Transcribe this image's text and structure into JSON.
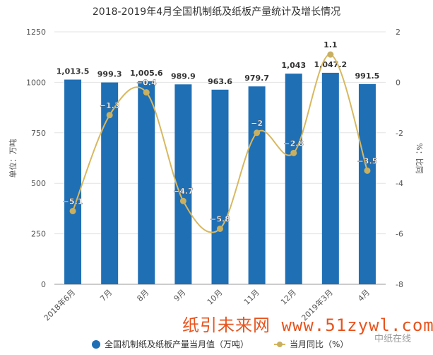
{
  "chart_data": {
    "type": "bar+line",
    "title": "2018-2019年4月全国机制纸及纸板产量统计及增长情况",
    "categories": [
      "2018年6月",
      "7月",
      "8月",
      "9月",
      "10月",
      "11月",
      "12月",
      "2019年3月",
      "4月"
    ],
    "series": [
      {
        "name": "全国机制纸及纸板产量当月值（万吨）",
        "type": "bar",
        "axis": "left",
        "color": "#1f6fb5",
        "values": [
          1013.5,
          999.3,
          1005.6,
          989.9,
          963.6,
          979.7,
          1043,
          1047.2,
          991.5
        ],
        "labels": [
          "1,013.5",
          "999.3",
          "1,005.6",
          "989.9",
          "963.6",
          "979.7",
          "1,043",
          "1,047.2",
          "991.5"
        ]
      },
      {
        "name": "当月同比（%）",
        "type": "line",
        "axis": "right",
        "color": "#d8b860",
        "values": [
          -5.1,
          -1.3,
          -0.4,
          -4.7,
          -5.8,
          -2,
          -2.8,
          1.1,
          -3.5
        ],
        "labels": [
          "−5.1",
          "−1.3",
          "−0.4",
          "−4.7",
          "−5.8",
          "−2",
          "−2.8",
          "1.1",
          "−3.5"
        ]
      }
    ],
    "ylabel": "单位：万吨",
    "ylim": [
      0,
      1250
    ],
    "yticks": [
      "0",
      "250",
      "500",
      "750",
      "1000",
      "1250"
    ],
    "y2label": "%：比同",
    "y2lim": [
      -8,
      2
    ],
    "y2ticks": [
      "-8",
      "-6",
      "-4",
      "-2",
      "0",
      "2"
    ],
    "grid": true,
    "legend": "bottom"
  },
  "watermark": "纸引未来网 www.51zywl.com",
  "watermark2": "中纸在线"
}
